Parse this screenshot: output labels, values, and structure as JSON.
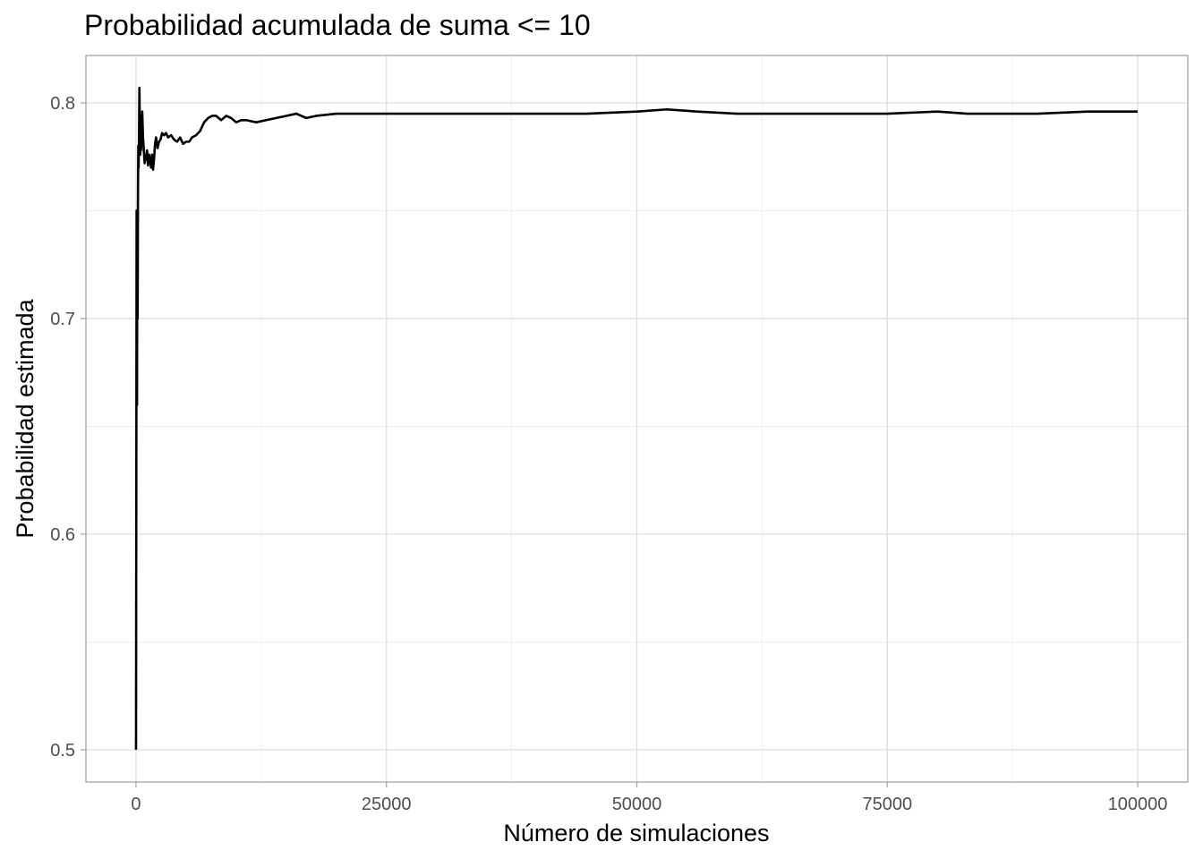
{
  "chart_data": {
    "type": "line",
    "title": "Probabilidad acumulada de suma <= 10",
    "xlabel": "Número de simulaciones",
    "ylabel": "Probabilidad estimada",
    "xlim": [
      -5000,
      105000
    ],
    "ylim": [
      0.485,
      0.822
    ],
    "x_ticks": [
      0,
      25000,
      50000,
      75000,
      100000
    ],
    "x_tick_labels": [
      "0",
      "25000",
      "50000",
      "75000",
      "100000"
    ],
    "y_ticks": [
      0.5,
      0.6,
      0.7,
      0.8
    ],
    "y_tick_labels": [
      "0.5",
      "0.6",
      "0.7",
      "0.8"
    ],
    "grid": true,
    "series_color": "#000000",
    "series": [
      {
        "x": [
          1,
          60,
          100,
          130,
          160,
          200,
          230,
          260,
          300,
          340,
          380,
          420,
          460,
          500,
          560,
          620,
          700,
          780,
          860,
          940,
          1020,
          1100,
          1200,
          1300,
          1400,
          1500,
          1600,
          1700,
          1800,
          1900,
          2000,
          2150,
          2300,
          2450,
          2600,
          2800,
          3000,
          3200,
          3500,
          3800,
          4100,
          4400,
          4700,
          5000,
          5300,
          5600,
          6000,
          6400,
          6800,
          7200,
          7600,
          8000,
          8500,
          9000,
          9500,
          10000,
          10500,
          11000,
          12000,
          13000,
          14000,
          15000,
          16000,
          17000,
          18000,
          20000,
          22000,
          24000,
          26000,
          28000,
          30000,
          33000,
          36000,
          40000,
          45000,
          50000,
          53000,
          56000,
          60000,
          65000,
          70000,
          75000,
          80000,
          83000,
          86000,
          90000,
          95000,
          100000
        ],
        "y": [
          0.5,
          0.75,
          0.66,
          0.74,
          0.7,
          0.76,
          0.78,
          0.77,
          0.784,
          0.807,
          0.79,
          0.776,
          0.785,
          0.778,
          0.79,
          0.796,
          0.784,
          0.778,
          0.772,
          0.774,
          0.775,
          0.778,
          0.771,
          0.776,
          0.774,
          0.77,
          0.776,
          0.769,
          0.774,
          0.781,
          0.784,
          0.779,
          0.782,
          0.783,
          0.786,
          0.785,
          0.786,
          0.784,
          0.785,
          0.783,
          0.782,
          0.784,
          0.781,
          0.782,
          0.782,
          0.784,
          0.785,
          0.787,
          0.791,
          0.793,
          0.794,
          0.794,
          0.792,
          0.794,
          0.793,
          0.791,
          0.792,
          0.792,
          0.791,
          0.792,
          0.793,
          0.794,
          0.795,
          0.793,
          0.794,
          0.795,
          0.795,
          0.795,
          0.795,
          0.795,
          0.795,
          0.795,
          0.795,
          0.795,
          0.795,
          0.796,
          0.797,
          0.796,
          0.795,
          0.795,
          0.795,
          0.795,
          0.796,
          0.795,
          0.795,
          0.795,
          0.796,
          0.796
        ]
      }
    ]
  }
}
